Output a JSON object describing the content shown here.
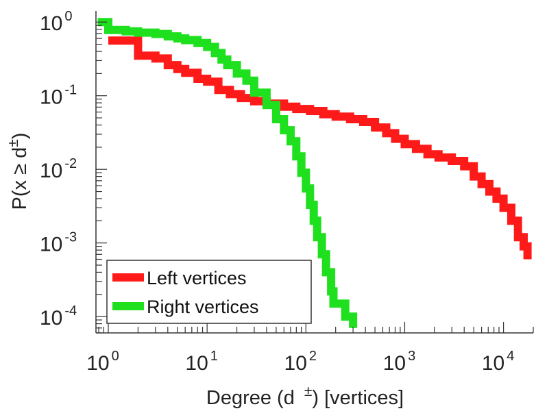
{
  "chart_data": {
    "type": "line",
    "x_scale": "log",
    "y_scale": "log",
    "xlabel": "Degree (d",
    "xlabel_sup": "±",
    "xlabel_unit": ") [vertices]",
    "ylabel": "P(x ≥ d",
    "ylabel_sup": "±",
    "ylabel_end": ")",
    "xlim": [
      0.75,
      20000
    ],
    "ylim": [
      6e-05,
      1.3
    ],
    "x_ticks": [
      {
        "value": 1,
        "base": "10",
        "exp": "0"
      },
      {
        "value": 10,
        "base": "10",
        "exp": "1"
      },
      {
        "value": 100,
        "base": "10",
        "exp": "2"
      },
      {
        "value": 1000,
        "base": "10",
        "exp": "3"
      },
      {
        "value": 10000,
        "base": "10",
        "exp": "4"
      }
    ],
    "y_ticks": [
      {
        "value": 1,
        "base": "10",
        "exp": "0"
      },
      {
        "value": 0.1,
        "base": "10",
        "exp": "-1"
      },
      {
        "value": 0.01,
        "base": "10",
        "exp": "-2"
      },
      {
        "value": 0.001,
        "base": "10",
        "exp": "-3"
      },
      {
        "value": 0.0001,
        "base": "10",
        "exp": "-4"
      }
    ],
    "grid": false,
    "legend_position": "bottom-left",
    "series": [
      {
        "name": "Left vertices",
        "color": "#ff1a1a",
        "step": true,
        "points": [
          [
            1,
            0.56
          ],
          [
            2,
            0.56
          ],
          [
            2,
            0.35
          ],
          [
            3,
            0.32
          ],
          [
            4,
            0.26
          ],
          [
            5,
            0.23
          ],
          [
            6,
            0.205
          ],
          [
            8,
            0.17
          ],
          [
            10,
            0.155
          ],
          [
            13,
            0.12
          ],
          [
            17,
            0.105
          ],
          [
            22,
            0.093
          ],
          [
            30,
            0.084
          ],
          [
            40,
            0.078
          ],
          [
            60,
            0.071
          ],
          [
            80,
            0.066
          ],
          [
            110,
            0.062
          ],
          [
            150,
            0.056
          ],
          [
            200,
            0.052
          ],
          [
            280,
            0.048
          ],
          [
            380,
            0.044
          ],
          [
            500,
            0.037
          ],
          [
            650,
            0.031
          ],
          [
            800,
            0.026
          ],
          [
            1000,
            0.022
          ],
          [
            1300,
            0.019
          ],
          [
            1700,
            0.016
          ],
          [
            2200,
            0.0145
          ],
          [
            3000,
            0.013
          ],
          [
            4000,
            0.011
          ],
          [
            5000,
            0.008
          ],
          [
            6000,
            0.0063
          ],
          [
            7200,
            0.005
          ],
          [
            8500,
            0.004
          ],
          [
            10000,
            0.003
          ],
          [
            12000,
            0.002
          ],
          [
            14000,
            0.0012
          ],
          [
            16000,
            0.0009
          ],
          [
            17500,
            0.0007
          ],
          [
            17500,
            0.0006
          ]
        ]
      },
      {
        "name": "Right vertices",
        "color": "#1ee01e",
        "step": true,
        "points": [
          [
            0.78,
            1.0
          ],
          [
            1.0,
            1.0
          ],
          [
            1.0,
            0.78
          ],
          [
            1.5,
            0.75
          ],
          [
            2,
            0.72
          ],
          [
            3,
            0.69
          ],
          [
            4,
            0.64
          ],
          [
            5,
            0.6
          ],
          [
            6,
            0.57
          ],
          [
            8,
            0.52
          ],
          [
            10,
            0.46
          ],
          [
            12,
            0.38
          ],
          [
            14,
            0.31
          ],
          [
            16,
            0.26
          ],
          [
            20,
            0.2
          ],
          [
            25,
            0.16
          ],
          [
            30,
            0.11
          ],
          [
            40,
            0.075
          ],
          [
            50,
            0.048
          ],
          [
            60,
            0.034
          ],
          [
            70,
            0.024
          ],
          [
            80,
            0.015
          ],
          [
            90,
            0.009
          ],
          [
            100,
            0.0055
          ],
          [
            110,
            0.0033
          ],
          [
            120,
            0.002
          ],
          [
            130,
            0.0012
          ],
          [
            145,
            0.0007
          ],
          [
            160,
            0.0004
          ],
          [
            180,
            0.00022
          ],
          [
            190,
            0.00015
          ],
          [
            230,
            0.00015
          ],
          [
            250,
            0.0001
          ],
          [
            300,
            0.0001
          ],
          [
            300,
            7e-05
          ]
        ]
      }
    ]
  }
}
